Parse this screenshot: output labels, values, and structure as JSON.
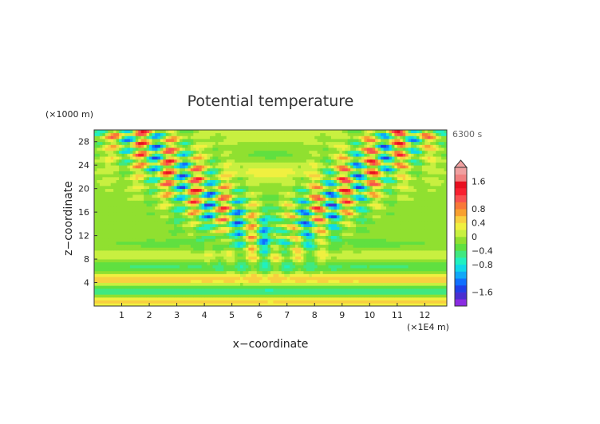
{
  "chart_data": {
    "type": "heatmap",
    "title": "Potential temperature",
    "xlabel": "x−coordinate",
    "ylabel": "z−coordinate",
    "x_unit": "(×1E4 m)",
    "y_unit": "(×1000 m)",
    "time_label": "6300 s",
    "xlim": [
      0,
      12.8
    ],
    "ylim": [
      0,
      30
    ],
    "x_ticks": [
      1,
      2,
      3,
      4,
      5,
      6,
      7,
      8,
      9,
      10,
      11,
      12
    ],
    "y_ticks": [
      4,
      8,
      12,
      16,
      20,
      24,
      28
    ],
    "colorbar": {
      "range": [
        -2,
        2
      ],
      "step": 0.2,
      "ticks": [
        {
          "value": 1.6,
          "label": "1.6"
        },
        {
          "value": 0.8,
          "label": "0.8"
        },
        {
          "value": 0.4,
          "label": "0.4"
        },
        {
          "value": 0,
          "label": "0"
        },
        {
          "value": -0.4,
          "label": "−0.4"
        },
        {
          "value": -0.8,
          "label": "−0.8"
        },
        {
          "value": -1.6,
          "label": "−1.6"
        }
      ],
      "colors": [
        "#8a2be2",
        "#4a2fd0",
        "#2040e8",
        "#1070ff",
        "#10a8f8",
        "#10d8e8",
        "#20f0c0",
        "#40e880",
        "#60e040",
        "#90e030",
        "#c8f040",
        "#f0f040",
        "#f8d040",
        "#f8a030",
        "#f87838",
        "#f85050",
        "#f82030",
        "#e81020",
        "#f08080",
        "#f0a0a0"
      ]
    },
    "colors": {
      "background_field": "#5adc45"
    }
  }
}
